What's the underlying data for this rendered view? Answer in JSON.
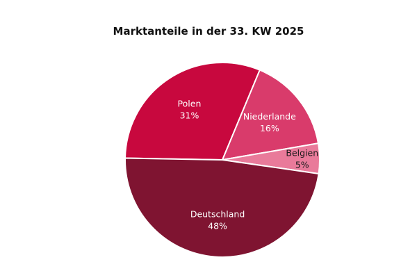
{
  "chart_data": {
    "type": "pie",
    "title": "Marktanteile in der 33. KW 2025",
    "slices": [
      {
        "label": "Polen",
        "value": 31,
        "value_label": "31%",
        "color": "#c8083e",
        "text_color": "#ffffff",
        "bold": false
      },
      {
        "label": "Niederlande",
        "value": 16,
        "value_label": "16%",
        "color": "#d93b6b",
        "text_color": "#ffffff",
        "bold": false
      },
      {
        "label": "Belgien",
        "value": 5,
        "value_label": "5%",
        "color": "#e97a9a",
        "text_color": "#1a1a1a",
        "bold": true
      },
      {
        "label": "Deutschland",
        "value": 48,
        "value_label": "48%",
        "color": "#7f1431",
        "text_color": "#ffffff",
        "bold": false
      }
    ]
  }
}
